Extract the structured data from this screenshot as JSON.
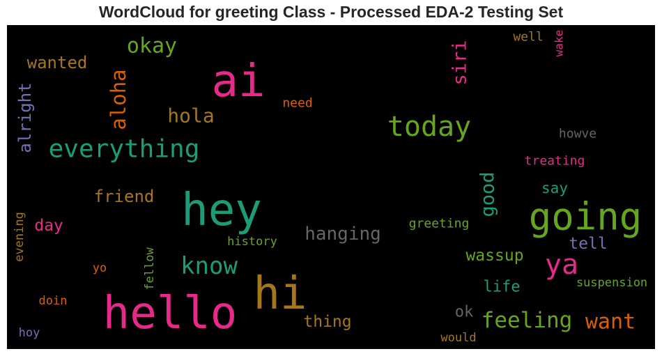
{
  "title": "WordCloud for greeting Class - Processed EDA-2 Testing Set",
  "chart_data": {
    "type": "wordcloud",
    "background": "#000000",
    "words": [
      {
        "text": "hello",
        "color": "#e7298a"
      },
      {
        "text": "hey",
        "color": "#1b9e77"
      },
      {
        "text": "hi",
        "color": "#a6761d"
      },
      {
        "text": "ai",
        "color": "#e7298a"
      },
      {
        "text": "going",
        "color": "#66a61e"
      },
      {
        "text": "today",
        "color": "#66a61e"
      },
      {
        "text": "ya",
        "color": "#e7298a"
      },
      {
        "text": "everything",
        "color": "#1b9e77"
      },
      {
        "text": "know",
        "color": "#1b9e77"
      },
      {
        "text": "feeling",
        "color": "#66a61e"
      },
      {
        "text": "want",
        "color": "#d95f02"
      },
      {
        "text": "okay",
        "color": "#66a61e"
      },
      {
        "text": "aloha",
        "color": "#d95f02"
      },
      {
        "text": "hola",
        "color": "#a6761d"
      },
      {
        "text": "siri",
        "color": "#e7298a"
      },
      {
        "text": "good",
        "color": "#1b9e77"
      },
      {
        "text": "alright",
        "color": "#7570b3"
      },
      {
        "text": "wanted",
        "color": "#a6761d"
      },
      {
        "text": "friend",
        "color": "#a6761d"
      },
      {
        "text": "hanging",
        "color": "#666666"
      },
      {
        "text": "day",
        "color": "#e7298a"
      },
      {
        "text": "wassup",
        "color": "#66a61e"
      },
      {
        "text": "thing",
        "color": "#a6761d"
      },
      {
        "text": "tell",
        "color": "#7570b3"
      },
      {
        "text": "life",
        "color": "#1b9e77"
      },
      {
        "text": "ok",
        "color": "#666666"
      },
      {
        "text": "say",
        "color": "#1b9e77"
      },
      {
        "text": "well",
        "color": "#a6761d"
      },
      {
        "text": "wake",
        "color": "#e7298a"
      },
      {
        "text": "need",
        "color": "#d95f02"
      },
      {
        "text": "howve",
        "color": "#666666"
      },
      {
        "text": "treating",
        "color": "#e7298a"
      },
      {
        "text": "greeting",
        "color": "#66a61e"
      },
      {
        "text": "history",
        "color": "#66a61e"
      },
      {
        "text": "evening",
        "color": "#a6761d"
      },
      {
        "text": "fellow",
        "color": "#66a61e"
      },
      {
        "text": "suspension",
        "color": "#66a61e"
      },
      {
        "text": "yo",
        "color": "#d95f02"
      },
      {
        "text": "doin",
        "color": "#d95f02"
      },
      {
        "text": "hoy",
        "color": "#7570b3"
      },
      {
        "text": "would",
        "color": "#a6761d"
      }
    ]
  }
}
